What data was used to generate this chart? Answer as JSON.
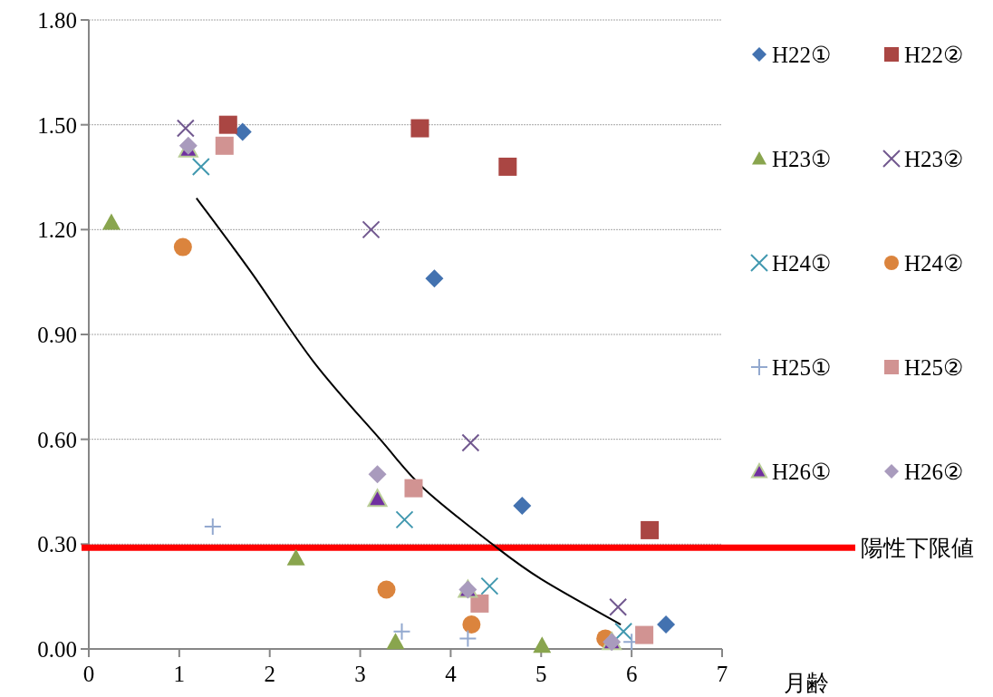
{
  "chart_data": {
    "type": "scatter",
    "xlabel": "月齢",
    "xlim": [
      0,
      7
    ],
    "xticks": [
      0,
      1,
      2,
      3,
      4,
      5,
      6,
      7
    ],
    "ylim": [
      0,
      1.8
    ],
    "yticks": [
      {
        "value": 0,
        "label": "0.00"
      },
      {
        "value": 0.3,
        "label": "0.30"
      },
      {
        "value": 0.6,
        "label": "0.60"
      },
      {
        "value": 0.9,
        "label": "0.90"
      },
      {
        "value": 1.2,
        "label": "1.20"
      },
      {
        "value": 1.5,
        "label": "1.50"
      },
      {
        "value": 1.8,
        "label": "1.80"
      }
    ],
    "grid": "y",
    "legend": "right",
    "series": [
      {
        "name": "H22①",
        "color": "#4372b0",
        "marker": "diamond",
        "x": [
          1.7,
          3.82,
          4.79,
          6.38
        ],
        "values": [
          1.48,
          1.06,
          0.41,
          0.07
        ]
      },
      {
        "name": "H22②",
        "color": "#aa4643",
        "marker": "square",
        "x": [
          1.54,
          3.66,
          4.63,
          6.2
        ],
        "values": [
          1.5,
          1.49,
          1.38,
          0.34
        ]
      },
      {
        "name": "H23①",
        "color": "#89a54e",
        "marker": "triangle",
        "x": [
          0.25,
          2.29,
          3.39,
          5.01
        ],
        "values": [
          1.22,
          0.26,
          0.02,
          0.01
        ]
      },
      {
        "name": "H23②",
        "color": "#71588f",
        "marker": "cross",
        "x": [
          1.07,
          3.12,
          4.22,
          5.85
        ],
        "values": [
          1.49,
          1.2,
          0.59,
          0.12
        ]
      },
      {
        "name": "H24①",
        "color": "#4198af",
        "marker": "cross",
        "x": [
          1.24,
          3.49,
          4.43,
          5.91
        ],
        "values": [
          1.38,
          0.37,
          0.18,
          0.05
        ]
      },
      {
        "name": "H24②",
        "color": "#db843d",
        "marker": "circle",
        "x": [
          1.04,
          3.29,
          4.23,
          5.71
        ],
        "values": [
          1.15,
          0.17,
          0.07,
          0.03
        ]
      },
      {
        "name": "H25①",
        "color": "#93a9cf",
        "marker": "plus",
        "x": [
          1.37,
          3.46,
          4.19,
          6.0
        ],
        "values": [
          0.35,
          0.05,
          0.03,
          0.02
        ]
      },
      {
        "name": "H25②",
        "color": "#d19392",
        "marker": "square",
        "x": [
          1.5,
          3.59,
          4.32,
          6.14
        ],
        "values": [
          1.44,
          0.46,
          0.13,
          0.04
        ]
      },
      {
        "name": "H26①",
        "color": "#7030a0",
        "marker": "triangle",
        "x": [
          1.1,
          3.19,
          4.19,
          5.78
        ],
        "values": [
          1.43,
          0.43,
          0.17,
          0.02
        ]
      },
      {
        "name": "H26②",
        "color": "#a99bbd",
        "marker": "diamond",
        "x": [
          1.1,
          3.19,
          4.19,
          5.78
        ],
        "values": [
          1.44,
          0.5,
          0.17,
          0.02
        ]
      },
      {
        "type": "line",
        "color": "#000000",
        "marker": "none",
        "x": [
          1.19,
          1.79,
          2.49,
          3.22,
          3.7,
          4.46,
          5.0,
          5.88
        ],
        "values": [
          1.29,
          1.08,
          0.82,
          0.6,
          0.46,
          0.3,
          0.2,
          0.07
        ]
      }
    ],
    "ref_lines": [
      {
        "axis": "y",
        "value": 0.29,
        "label": "陽性下限値",
        "color": "#ff0000"
      }
    ]
  }
}
